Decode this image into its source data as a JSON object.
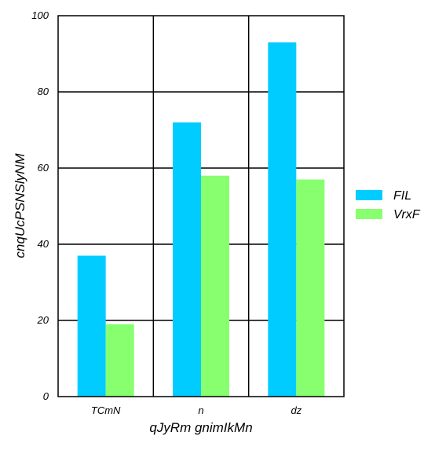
{
  "colors": {
    "FIL": "#00ccff",
    "VrxF": "#88ff6e",
    "grid": "#000000",
    "background": "#ffffff"
  },
  "chart_data": {
    "type": "bar",
    "title": "",
    "xlabel": "qJyRm gnimIkMn",
    "ylabel": "cnqUcPSNSlyNM",
    "categories": [
      "TCmN",
      "n",
      "dz"
    ],
    "series": [
      {
        "name": "FIL",
        "values": [
          37,
          72,
          93
        ]
      },
      {
        "name": "VrxF",
        "values": [
          19,
          58,
          57
        ]
      }
    ],
    "ylim": [
      0,
      100
    ],
    "yticks": [
      0,
      20,
      40,
      60,
      80,
      100
    ],
    "grid": true,
    "legend": "right"
  }
}
